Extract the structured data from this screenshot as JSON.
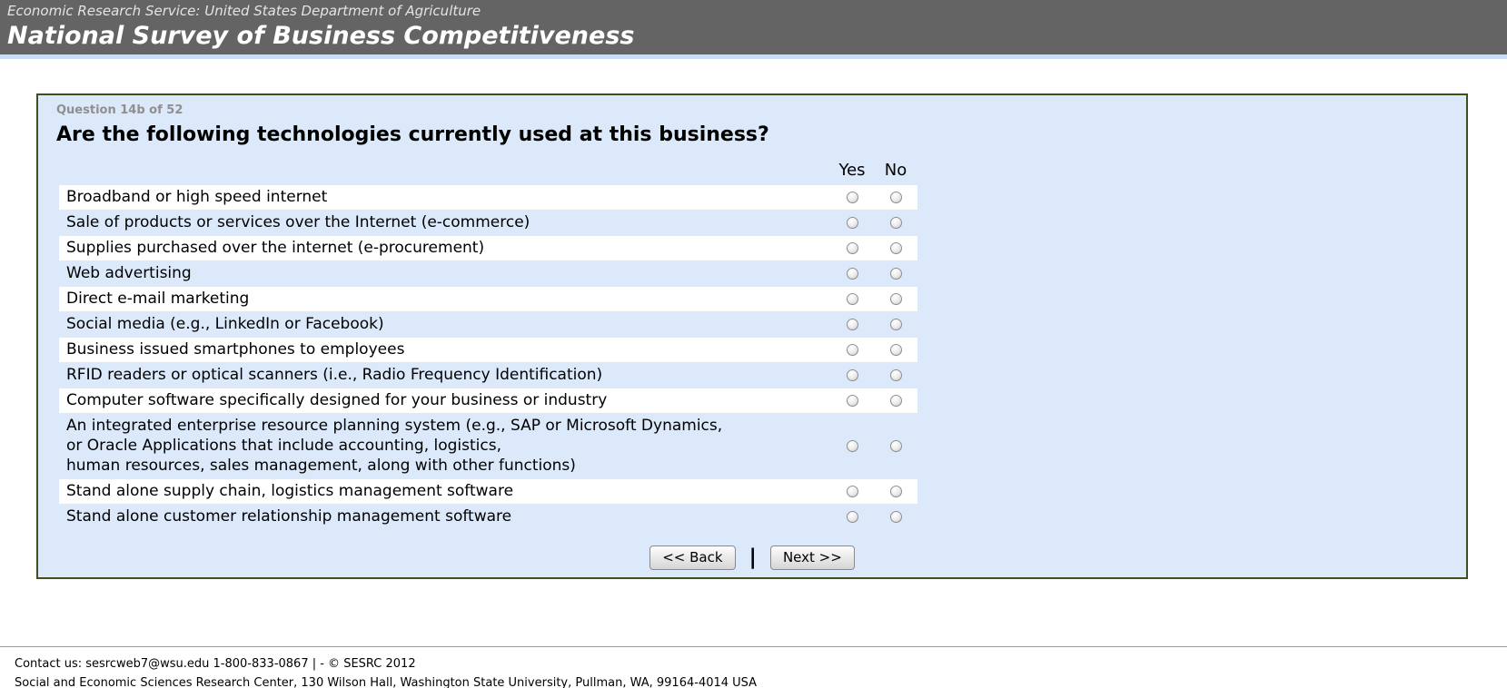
{
  "header": {
    "agency": "Economic Research Service: United States Department of Agriculture",
    "title": "National Survey of Business Competitiveness"
  },
  "survey": {
    "question_number": "Question 14b of 52",
    "question": "Are the following technologies currently used at this business?",
    "columns": {
      "yes": "Yes",
      "no": "No"
    },
    "items": [
      "Broadband or high speed internet",
      "Sale of products or services over the Internet (e-commerce)",
      "Supplies purchased over the internet (e-procurement)",
      "Web advertising",
      "Direct e-mail marketing",
      "Social media (e.g., LinkedIn or Facebook)",
      "Business issued smartphones to employees",
      "RFID readers or optical scanners (i.e., Radio Frequency Identification)",
      "Computer software specifically designed for your business or industry",
      "An integrated enterprise resource planning system (e.g., SAP or Microsoft Dynamics,\nor Oracle Applications that include accounting, logistics,\nhuman resources, sales management, along with other functions)",
      "Stand alone supply chain, logistics management software",
      "Stand alone customer relationship management software"
    ],
    "radio_state": "unselected",
    "buttons": {
      "back": "<< Back",
      "separator": "|",
      "next": "Next >>"
    }
  },
  "footer": {
    "line1": "Contact us: sesrcweb7@wsu.edu 1-800-833-0867 | - © SESRC 2012",
    "line2": "Social and Economic Sciences Research Center, 130 Wilson Hall, Washington State University, Pullman, WA, 99164-4014 USA"
  },
  "colors": {
    "banner_bg": "#646464",
    "banner_strip": "#c9dcf3",
    "panel_bg": "#dbe9fa",
    "panel_border": "#3d4f1d",
    "stripe_row": "#ffffff",
    "question_number_text": "#8f8f8f"
  }
}
